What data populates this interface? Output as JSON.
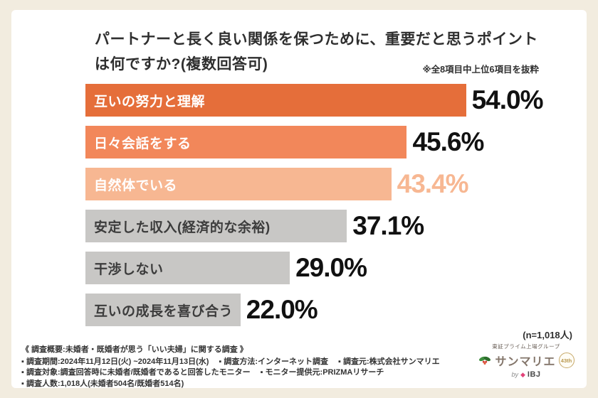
{
  "colors": {
    "page_bg": "#f2ecdf",
    "card_bg": "#ffffff",
    "accent_dark_orange": "#e56e3a",
    "accent_mid_orange": "#f2875a",
    "accent_light_orange": "#f7b792",
    "bar_gray": "#c8c7c5"
  },
  "title": {
    "line1": "パートナーと長く良い関係を保つために、重要だと思うポイント",
    "line2": "は何ですか?(複数回答可)",
    "note": "※全8項目中上位6項目を抜粋"
  },
  "chart_data": {
    "type": "bar",
    "orientation": "horizontal",
    "title": "パートナーと長く良い関係を保つために、重要だと思うポイントは何ですか?(複数回答可)",
    "note": "※全8項目中上位6項目を抜粋",
    "categories": [
      "互いの努力と理解",
      "日々会話をする",
      "自然体でいる",
      "安定した収入(経済的な余裕)",
      "干渉しない",
      "互いの成長を喜び合う"
    ],
    "values": [
      54.0,
      45.6,
      43.4,
      37.1,
      29.0,
      22.0
    ],
    "value_labels": [
      "54.0%",
      "45.6%",
      "43.4%",
      "37.1%",
      "29.0%",
      "22.0%"
    ],
    "bar_colors": [
      "#e56e3a",
      "#f2875a",
      "#f7b792",
      "#c8c7c5",
      "#c8c7c5",
      "#c8c7c5"
    ],
    "category_label_colors": [
      "#ffffff",
      "#ffffff",
      "#ffffff",
      "#3c3c3c",
      "#3c3c3c",
      "#3c3c3c"
    ],
    "value_label_colors": [
      "#111111",
      "#111111",
      "#f7b792",
      "#111111",
      "#111111",
      "#111111"
    ],
    "xlim": [
      0,
      54.5
    ],
    "unit": "%",
    "grid": false,
    "legend": "none",
    "sample_note": "(n=1,018人)"
  },
  "footer": {
    "heading": "《 調査概要:未婚者・既婚者が思う「いい夫婦」に関する調査 》",
    "rows": [
      [
        "▪ 調査期間:2024年11月12日(火) ~2024年11月13日(水)",
        "▪ 調査方法:インターネット調査",
        "▪ 調査元:株式会社サンマリエ"
      ],
      [
        "▪ 調査対象:調査回答時に未婚者/既婚者であると回答したモニター",
        "▪ モニター提供元:PRIZMAリサーチ"
      ],
      [
        "▪ 調査人数:1,018人(未婚者504名/既婚者514名)"
      ]
    ]
  },
  "logo": {
    "group_text": "東証プライム上場グループ",
    "brand": "サンマリエ",
    "badge": "43th",
    "by_label": "by",
    "ibj": "IBJ"
  }
}
